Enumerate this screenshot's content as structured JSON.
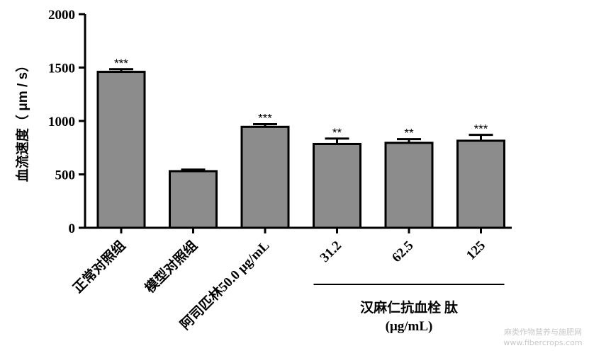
{
  "chart_data": {
    "type": "bar",
    "ylabel": "血流速度（ μm / s）",
    "ylim": [
      0,
      2000
    ],
    "yticks": [
      "0",
      "500",
      "1000",
      "1500",
      "2000"
    ],
    "categories": [
      "正常对照组",
      "模型对照组",
      "阿司匹林50.0 μg/mL",
      "31.2",
      "62.5",
      "125"
    ],
    "values": [
      1460,
      530,
      945,
      785,
      795,
      815
    ],
    "errors": [
      25,
      15,
      25,
      50,
      35,
      55
    ],
    "significance": [
      "***",
      "",
      "***",
      "**",
      "**",
      "***"
    ],
    "group_label": {
      "line1": "汉麻仁抗血栓 肽",
      "line2": "(μg/mL)",
      "spans": [
        3,
        5
      ]
    },
    "bar_color": "#8c8c8c",
    "grid": false,
    "legend": "none"
  },
  "watermark": {
    "line1": "麻类作物营养与施肥网",
    "line2": "www.fibercrops.com"
  }
}
